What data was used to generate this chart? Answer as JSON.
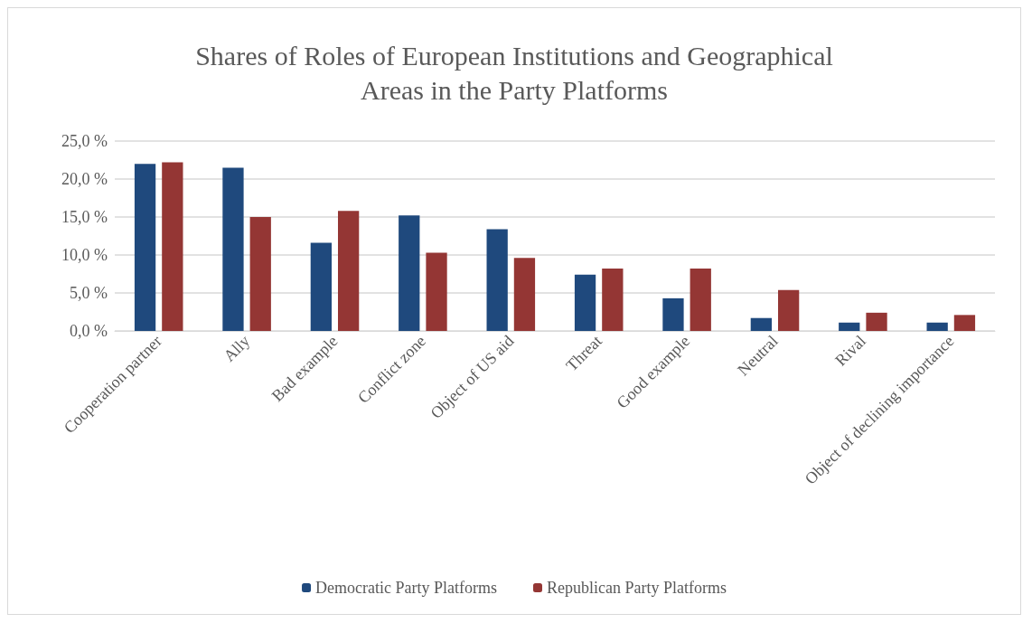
{
  "chart_data": {
    "type": "bar",
    "title": "Shares of Roles of European Institutions and Geographical\nAreas in the Party Platforms",
    "categories": [
      "Cooperation partner",
      "Ally",
      "Bad example",
      "Conflict zone",
      "Object of US aid",
      "Threat",
      "Good example",
      "Neutral",
      "Rival",
      "Object of declining importance"
    ],
    "series": [
      {
        "name": "Democratic Party Platforms",
        "color": "#1f497d",
        "values": [
          22.0,
          21.5,
          11.6,
          15.2,
          13.4,
          7.4,
          4.3,
          1.7,
          1.1,
          1.1
        ]
      },
      {
        "name": "Republican Party Platforms",
        "color": "#943634",
        "values": [
          22.2,
          15.0,
          15.8,
          10.3,
          9.6,
          8.2,
          8.2,
          5.4,
          2.4,
          2.1
        ]
      }
    ],
    "ylim": [
      0,
      25
    ],
    "yticks": [
      {
        "value": 0,
        "label": "0,0 %"
      },
      {
        "value": 5,
        "label": "5,0 %"
      },
      {
        "value": 10,
        "label": "10,0 %"
      },
      {
        "value": 15,
        "label": "15,0 %"
      },
      {
        "value": 20,
        "label": "20,0 %"
      },
      {
        "value": 25,
        "label": "25,0 %"
      }
    ],
    "grid": "y",
    "legend": "bottom"
  }
}
